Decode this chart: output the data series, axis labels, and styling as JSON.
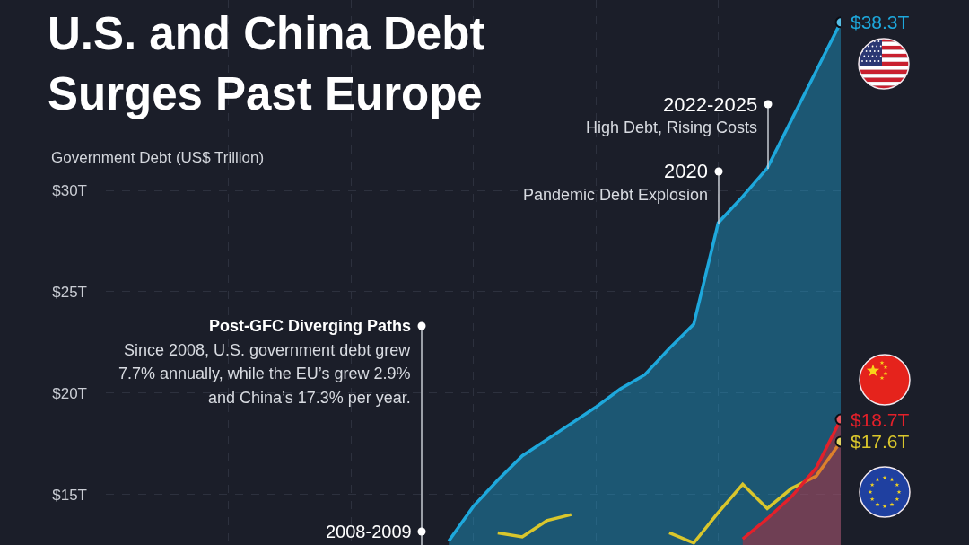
{
  "chart_data": {
    "type": "area",
    "title": "U.S. and China Debt\nSurges Past Europe",
    "ylabel": "Government Debt (US$ Trillion)",
    "categories": [
      null,
      null,
      null,
      null,
      null,
      null,
      null,
      null,
      null,
      null,
      null,
      null,
      null,
      null,
      null,
      null,
      null,
      null,
      null,
      null,
      null,
      null,
      null,
      null,
      null,
      null,
      null,
      null,
      null,
      null,
      null
    ],
    "ylim": [
      12.5,
      39.4
    ],
    "yticks": [
      {
        "value": 15,
        "label": "$15T"
      },
      {
        "value": 20,
        "label": "$20T"
      },
      {
        "value": 25,
        "label": "$25T"
      },
      {
        "value": 30,
        "label": "$30T"
      }
    ],
    "grid": true,
    "tick_labels": "y",
    "series": [
      {
        "color": "#1ea8dc",
        "values": [
          null,
          null,
          null,
          null,
          null,
          null,
          null,
          null,
          null,
          null,
          null,
          null,
          null,
          null,
          12.7,
          14.4,
          15.7,
          16.9,
          17.7,
          18.5,
          19.3,
          20.2,
          20.9,
          22.2,
          23.4,
          28.4,
          29.7,
          31.1,
          33.5,
          35.9,
          38.3
        ],
        "value_labels": [
          null,
          null,
          null,
          null,
          null,
          null,
          null,
          null,
          null,
          null,
          null,
          null,
          null,
          null,
          null,
          null,
          null,
          null,
          null,
          null,
          null,
          null,
          null,
          null,
          null,
          null,
          null,
          null,
          null,
          null,
          "$38.3T"
        ]
      },
      {
        "type": "line",
        "color": "#d9c62c",
        "values": [
          null,
          null,
          null,
          null,
          null,
          null,
          null,
          null,
          null,
          null,
          null,
          null,
          null,
          null,
          null,
          null,
          13.1,
          12.9,
          13.7,
          14.0,
          null,
          null,
          null,
          13.1,
          12.6,
          14.1,
          15.5,
          14.3,
          15.3,
          15.9,
          17.6
        ],
        "value_labels": [
          null,
          null,
          null,
          null,
          null,
          null,
          null,
          null,
          null,
          null,
          null,
          null,
          null,
          null,
          null,
          null,
          null,
          null,
          null,
          null,
          null,
          null,
          null,
          null,
          null,
          null,
          null,
          null,
          null,
          null,
          "$17.6T"
        ]
      },
      {
        "color": "#e3202a",
        "values": [
          null,
          null,
          null,
          null,
          null,
          null,
          null,
          null,
          null,
          null,
          null,
          null,
          null,
          null,
          null,
          null,
          null,
          null,
          null,
          null,
          null,
          null,
          null,
          null,
          null,
          null,
          12.8,
          13.8,
          14.9,
          16.3,
          18.7
        ],
        "value_labels": [
          null,
          null,
          null,
          null,
          null,
          null,
          null,
          null,
          null,
          null,
          null,
          null,
          null,
          null,
          null,
          null,
          null,
          null,
          null,
          null,
          null,
          null,
          null,
          null,
          null,
          null,
          null,
          null,
          null,
          null,
          "$18.7T"
        ]
      }
    ],
    "annotations": [
      "2022-2025\nHigh Debt, Rising Costs",
      "2020\nPandemic Debt Explosion",
      "Post-GFC Diverging Paths\nSince 2008, U.S. government debt grew\n7.7% annually, while the EU’s grew 2.9%\nand China’s 17.3% per year.",
      "2008-2009"
    ]
  }
}
